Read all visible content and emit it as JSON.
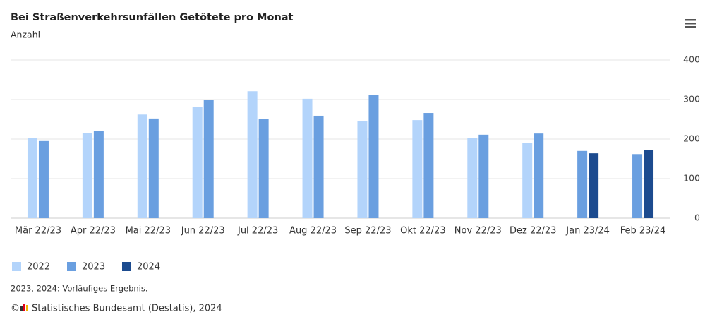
{
  "chart_data": {
    "type": "bar",
    "title": "Bei Straßenverkehrsunfällen Getötete pro Monat",
    "subtitle": "Anzahl",
    "categories": [
      "Mär 22/23",
      "Apr 22/23",
      "Mai 22/23",
      "Jun 22/23",
      "Jul 22/23",
      "Aug 22/23",
      "Sep 22/23",
      "Okt 22/23",
      "Nov 22/23",
      "Dez 22/23",
      "Jan 23/24",
      "Feb 23/24"
    ],
    "series": [
      {
        "name": "2022",
        "color": "#b3d4fb",
        "values": [
          202,
          216,
          262,
          282,
          321,
          302,
          246,
          248,
          202,
          191,
          null,
          null
        ]
      },
      {
        "name": "2023",
        "color": "#6a9fe0",
        "values": [
          195,
          221,
          252,
          300,
          250,
          259,
          311,
          266,
          211,
          214,
          170,
          162
        ]
      },
      {
        "name": "2024",
        "color": "#1c4b8f",
        "values": [
          null,
          null,
          null,
          null,
          null,
          null,
          null,
          null,
          null,
          null,
          164,
          173
        ]
      }
    ],
    "ylim": [
      0,
      400
    ],
    "yticks": [
      0,
      100,
      200,
      300,
      400
    ],
    "grid": true,
    "note": "2023, 2024: Vorläufiges Ergebnis.",
    "credits": "Statistisches Bundesamt (Destatis), 2024",
    "copyright": "©"
  }
}
